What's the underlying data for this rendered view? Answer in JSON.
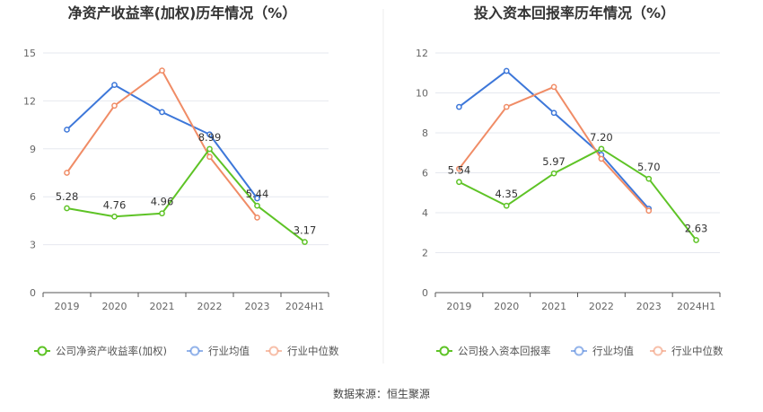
{
  "source_label": "数据来源：恒生聚源",
  "colors": {
    "company": "#5ec326",
    "industry_avg": "#3d77d9",
    "industry_median": "#f08c66"
  },
  "chart_data": [
    {
      "type": "line",
      "title": "净资产收益率(加权)历年情况（%）",
      "categories": [
        "2019",
        "2020",
        "2021",
        "2022",
        "2023",
        "2024H1"
      ],
      "ylim": [
        0,
        15
      ],
      "yticks": [
        "0",
        "3",
        "6",
        "9",
        "12",
        "15"
      ],
      "grid": true,
      "legend_position": "bottom",
      "series": [
        {
          "name": "公司净资产收益率(加权)",
          "key": "company",
          "values": [
            5.28,
            4.76,
            4.96,
            8.99,
            5.44,
            3.17
          ],
          "labels": [
            "5.28",
            "4.76",
            "4.96",
            "8.99",
            "5.44",
            "3.17"
          ]
        },
        {
          "name": "行业均值",
          "key": "industry_avg",
          "values": [
            10.2,
            13.0,
            11.3,
            9.9,
            5.9,
            null
          ]
        },
        {
          "name": "行业中位数",
          "key": "industry_median",
          "values": [
            7.5,
            11.7,
            13.9,
            8.5,
            4.7,
            null
          ]
        }
      ]
    },
    {
      "type": "line",
      "title": "投入资本回报率历年情况（%）",
      "categories": [
        "2019",
        "2020",
        "2021",
        "2022",
        "2023",
        "2024H1"
      ],
      "ylim": [
        0,
        12
      ],
      "yticks": [
        "0",
        "2",
        "4",
        "6",
        "8",
        "10",
        "12"
      ],
      "grid": true,
      "legend_position": "bottom",
      "series": [
        {
          "name": "公司投入资本回报率",
          "key": "company",
          "values": [
            5.54,
            4.35,
            5.97,
            7.2,
            5.7,
            2.63
          ],
          "labels": [
            "5.54",
            "4.35",
            "5.97",
            "7.20",
            "5.70",
            "2.63"
          ]
        },
        {
          "name": "行业均值",
          "key": "industry_avg",
          "values": [
            9.3,
            11.1,
            9.0,
            6.9,
            4.2,
            null
          ]
        },
        {
          "name": "行业中位数",
          "key": "industry_median",
          "values": [
            6.2,
            9.3,
            10.3,
            6.7,
            4.1,
            null
          ]
        }
      ]
    }
  ]
}
